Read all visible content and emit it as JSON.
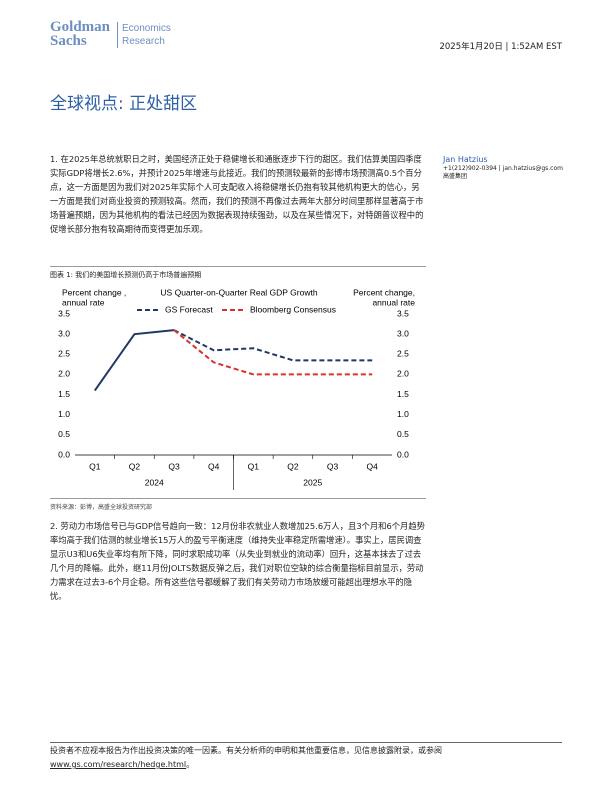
{
  "header": {
    "logo_line1": "Goldman",
    "logo_line2": "Sachs",
    "division_line1": "Economics",
    "division_line2": "Research",
    "date": "2025年1月20日 | 1:52AM EST"
  },
  "title": "全球视点: 正处甜区",
  "author": {
    "name": "Jan Hatzius",
    "contact": "+1(212)902-0394 | jan.hatzius@gs.com",
    "firm": "高盛集团"
  },
  "paragraphs": [
    "1. 在2025年总统就职日之时，美国经济正处于稳健增长和通胀逐步下行的甜区。我们估算美国四季度实际GDP将增长2.6%，并预计2025年增速与此接近。我们的预测较最新的彭博市场预测高0.5个百分点，这一方面是因为我们对2025年实际个人可支配收入将稳健增长仍抱有较其他机构更大的信心，另一方面是我们对商业投资的预测较高。然而，我们的预测不再像过去两年大部分时间里那样显著高于市场普遍预期，因为其他机构的看法已经因为数据表现持续强劲，以及在某些情况下，对特朗普议程中的促增长部分抱有较高期待而变得更加乐观。",
    "2. 劳动力市场信号已与GDP信号趋向一致：12月份非农就业人数增加25.6万人，且3个月和6个月趋势率均高于我们估测的就业增长15万人的盈亏平衡速度（维持失业率稳定所需增速）。事实上，居民调查显示U3和U6失业率均有所下降，同时求职成功率（从失业到就业的流动率）回升，这基本抹去了过去几个月的降幅。此外，继11月份JOLTS数据反弹之后，我们对职位空缺的综合衡量指标目前显示，劳动力需求在过去3-6个月企稳。所有这些信号都缓解了我们有关劳动力市场放缓可能超出理想水平的隐忧。"
  ],
  "figure_caption": "图表 1: 我们的美国增长预测仍高于市场普遍预期",
  "figure_source": "资料来源：彭博，高盛全球投资研究部",
  "footer": {
    "text": "投资者不应视本报告为作出投资决策的唯一因素。有关分析师的申明和其他重要信息，见信息披露附录，或参阅",
    "link": "www.gs.com/research/hedge.html",
    "end": "。"
  },
  "chart_data": {
    "type": "line",
    "title": "US Quarter-on-Quarter Real GDP Growth",
    "y_label": [
      "Percent change ,",
      "annual rate"
    ],
    "y2_label": [
      "Percent change,",
      "annual rate"
    ],
    "categories": [
      "Q1",
      "Q2",
      "Q3",
      "Q4",
      "Q1",
      "Q2",
      "Q3",
      "Q4"
    ],
    "year_labels": [
      "2024",
      "2025"
    ],
    "series": [
      {
        "color": "#1f3864",
        "dashed": false,
        "values": [
          1.6,
          3.0,
          3.1,
          null,
          null,
          null,
          null,
          null
        ]
      },
      {
        "name": "GS Forecast",
        "color": "#1f3864",
        "dashed": true,
        "values": [
          null,
          null,
          3.1,
          2.6,
          2.65,
          2.35,
          2.35,
          2.35
        ]
      },
      {
        "name": "Bloomberg Consensus",
        "color": "#d9312b",
        "dashed": true,
        "values": [
          null,
          null,
          3.1,
          2.3,
          2.0,
          2.0,
          2.0,
          2.0
        ]
      }
    ],
    "ylim": [
      0,
      3.5
    ],
    "yticks": [
      {
        "value": 0,
        "label": "0.0"
      },
      0.5,
      {
        "value": 1,
        "label": "1.0"
      },
      1.5,
      {
        "value": 2,
        "label": "2.0"
      },
      2.5,
      {
        "value": 3,
        "label": "3.0"
      },
      3.5
    ],
    "y2lim": [
      0,
      3.5
    ],
    "y2ticks": [
      {
        "value": 0,
        "label": "0.0"
      },
      0.5,
      {
        "value": 1,
        "label": "1.0"
      },
      1.5,
      {
        "value": 2,
        "label": "2.0"
      },
      2.5,
      {
        "value": 3,
        "label": "3.0"
      },
      3.5
    ]
  }
}
